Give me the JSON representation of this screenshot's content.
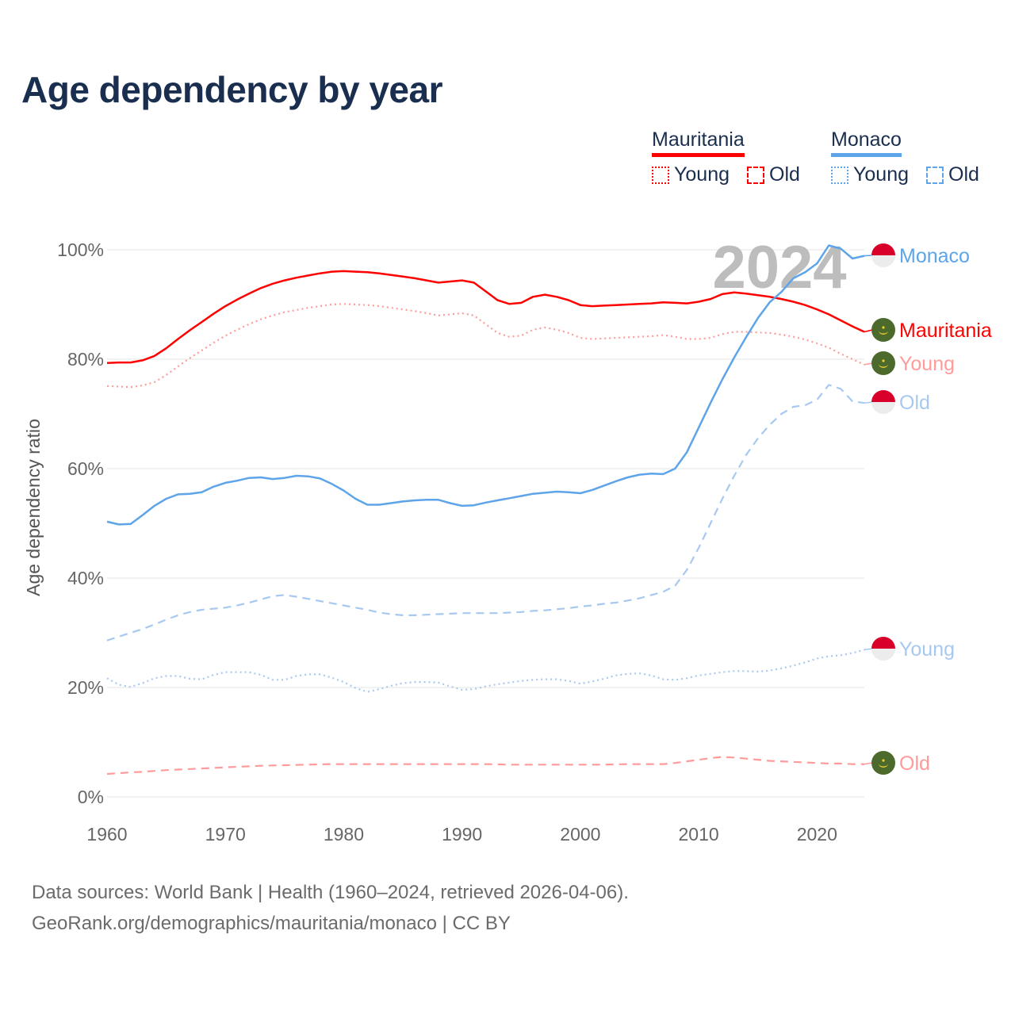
{
  "chart_data": {
    "type": "line",
    "title": "Age dependency by year",
    "ylabel": "Age dependency ratio",
    "xlabel": "",
    "xlim": [
      1960,
      2024
    ],
    "ylim": [
      0,
      100
    ],
    "grid": true,
    "legend_position": "top-right",
    "highlight_year": "2024",
    "x_start": 1960,
    "xticks": [
      1960,
      1970,
      1980,
      1990,
      2000,
      2010,
      2020
    ],
    "yticks": [
      0,
      20,
      40,
      60,
      80,
      100
    ],
    "ytick_labels": [
      "0%",
      "20%",
      "40%",
      "60%",
      "80%",
      "100%"
    ],
    "legend": [
      {
        "country": "Mauritania",
        "color": "#ff0000",
        "young": "Young",
        "old": "Old"
      },
      {
        "country": "Monaco",
        "color": "#5ea4e9",
        "young": "Young",
        "old": "Old"
      }
    ],
    "series": [
      {
        "name": "Mauritania",
        "metric": "Total",
        "end_label": "Mauritania",
        "flag": "mauritania-flag",
        "color": "#ff0000",
        "dash": "solid",
        "values": [
          79.3,
          79.4,
          79.4,
          79.8,
          80.6,
          82.0,
          83.7,
          85.3,
          86.8,
          88.3,
          89.7,
          90.9,
          92.0,
          93.0,
          93.8,
          94.4,
          94.9,
          95.3,
          95.7,
          96.0,
          96.1,
          96.0,
          95.9,
          95.7,
          95.4,
          95.1,
          94.8,
          94.4,
          94.0,
          94.2,
          94.4,
          94.0,
          92.4,
          90.8,
          90.1,
          90.3,
          91.4,
          91.8,
          91.4,
          90.8,
          89.9,
          89.7,
          89.8,
          89.9,
          90.0,
          90.1,
          90.2,
          90.4,
          90.3,
          90.2,
          90.5,
          91.0,
          91.9,
          92.2,
          92.0,
          91.7,
          91.4,
          91.0,
          90.5,
          89.9,
          89.1,
          88.2,
          87.1,
          86.0,
          85.0
        ]
      },
      {
        "name": "Mauritania",
        "metric": "Young",
        "end_label": "Young",
        "flag": "mauritania-flag",
        "color": "#ff9b9b",
        "dash": "dotted",
        "values": [
          75.1,
          75.0,
          74.9,
          75.2,
          75.8,
          77.1,
          78.7,
          80.2,
          81.6,
          83.0,
          84.3,
          85.4,
          86.4,
          87.3,
          88.0,
          88.6,
          89.0,
          89.4,
          89.7,
          90.0,
          90.1,
          90.0,
          89.9,
          89.7,
          89.4,
          89.1,
          88.8,
          88.4,
          88.0,
          88.2,
          88.4,
          88.0,
          86.4,
          84.8,
          84.1,
          84.3,
          85.4,
          85.8,
          85.4,
          84.8,
          83.9,
          83.7,
          83.8,
          83.9,
          84.0,
          84.1,
          84.2,
          84.4,
          84.1,
          83.7,
          83.7,
          83.9,
          84.6,
          85.0,
          85.0,
          84.9,
          84.8,
          84.5,
          84.1,
          83.6,
          82.9,
          82.1,
          81.0,
          80.0,
          79.0
        ]
      },
      {
        "name": "Mauritania",
        "metric": "Old",
        "end_label": "Old",
        "flag": "mauritania-flag",
        "color": "#ff9b9b",
        "dash": "dashed",
        "values": [
          4.2,
          4.35,
          4.5,
          4.6,
          4.75,
          4.9,
          5.0,
          5.1,
          5.2,
          5.3,
          5.4,
          5.5,
          5.6,
          5.7,
          5.75,
          5.8,
          5.85,
          5.9,
          5.95,
          6.0,
          6.0,
          6.0,
          6.0,
          6.0,
          6.0,
          6.0,
          6.0,
          6.0,
          6.0,
          6.0,
          6.0,
          6.0,
          6.0,
          5.95,
          5.9,
          5.9,
          5.9,
          5.9,
          5.9,
          5.9,
          5.9,
          5.9,
          5.9,
          5.95,
          6.0,
          6.0,
          6.0,
          6.0,
          6.2,
          6.5,
          6.8,
          7.1,
          7.3,
          7.2,
          7.0,
          6.8,
          6.6,
          6.5,
          6.4,
          6.3,
          6.2,
          6.1,
          6.1,
          6.0,
          6.0
        ]
      },
      {
        "name": "Monaco",
        "metric": "Total",
        "end_label": "Monaco",
        "flag": "monaco-flag",
        "color": "#5ea4e9",
        "dash": "solid",
        "values": [
          50.3,
          49.8,
          49.9,
          51.5,
          53.2,
          54.5,
          55.3,
          55.4,
          55.7,
          56.7,
          57.4,
          57.8,
          58.3,
          58.4,
          58.1,
          58.3,
          58.7,
          58.6,
          58.2,
          57.2,
          56.0,
          54.5,
          53.4,
          53.4,
          53.7,
          54.0,
          54.2,
          54.3,
          54.3,
          53.7,
          53.2,
          53.3,
          53.8,
          54.2,
          54.6,
          55.0,
          55.4,
          55.6,
          55.8,
          55.7,
          55.5,
          56.1,
          56.9,
          57.7,
          58.4,
          58.9,
          59.1,
          59.0,
          60.0,
          63.0,
          67.5,
          72.0,
          76.3,
          80.3,
          84.0,
          87.5,
          90.4,
          92.3,
          94.8,
          95.9,
          97.5,
          100.8,
          100.2,
          98.4,
          98.9
        ]
      },
      {
        "name": "Monaco",
        "metric": "Young",
        "end_label": "Young",
        "flag": "monaco-flag",
        "color": "#a7c9f1",
        "dash": "dotted",
        "values": [
          21.7,
          20.5,
          20.1,
          20.8,
          21.7,
          22.1,
          22.1,
          21.6,
          21.5,
          22.3,
          22.8,
          22.8,
          22.8,
          22.3,
          21.4,
          21.4,
          22.1,
          22.4,
          22.4,
          21.8,
          21.0,
          19.9,
          19.2,
          19.7,
          20.3,
          20.8,
          21.0,
          21.0,
          20.9,
          20.2,
          19.6,
          19.7,
          20.2,
          20.6,
          20.9,
          21.2,
          21.4,
          21.5,
          21.5,
          21.2,
          20.7,
          21.1,
          21.6,
          22.2,
          22.5,
          22.6,
          22.2,
          21.5,
          21.4,
          21.7,
          22.2,
          22.5,
          22.8,
          23.0,
          23.0,
          22.9,
          23.1,
          23.5,
          24.0,
          24.6,
          25.3,
          25.7,
          25.9,
          26.3,
          26.9
        ]
      },
      {
        "name": "Monaco",
        "metric": "Old",
        "end_label": "Old",
        "flag": "monaco-flag",
        "color": "#a7c9f1",
        "dash": "dashed",
        "values": [
          28.6,
          29.3,
          30.0,
          30.7,
          31.5,
          32.4,
          33.2,
          33.8,
          34.2,
          34.4,
          34.6,
          35.0,
          35.5,
          36.1,
          36.7,
          36.9,
          36.6,
          36.2,
          35.8,
          35.4,
          35.0,
          34.6,
          34.2,
          33.7,
          33.4,
          33.2,
          33.2,
          33.3,
          33.4,
          33.5,
          33.6,
          33.6,
          33.6,
          33.6,
          33.7,
          33.8,
          34.0,
          34.1,
          34.3,
          34.5,
          34.8,
          35.0,
          35.3,
          35.5,
          35.9,
          36.3,
          36.9,
          37.5,
          38.6,
          41.5,
          45.5,
          50.0,
          54.5,
          58.7,
          62.5,
          65.5,
          68.0,
          70.0,
          71.3,
          71.6,
          72.6,
          75.3,
          74.6,
          72.3,
          72.0
        ]
      }
    ]
  },
  "footer": {
    "line1": "Data sources: World Bank | Health (1960–2024, retrieved 2026-04-06).",
    "line2": "GeoRank.org/demographics/mauritania/monaco | CC BY"
  }
}
